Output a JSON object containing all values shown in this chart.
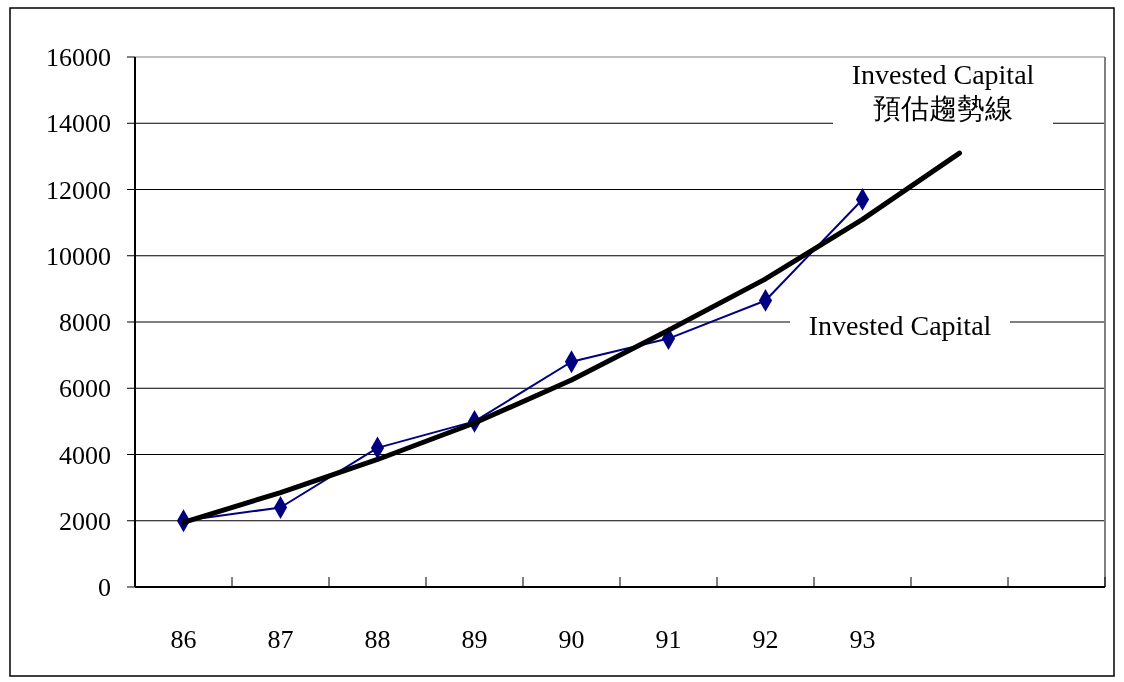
{
  "chart_data": {
    "type": "line",
    "categories": [
      "86",
      "87",
      "88",
      "89",
      "90",
      "91",
      "92",
      "93",
      null,
      null
    ],
    "series": [
      {
        "name": "Invested Capital",
        "color": "#000080",
        "marker": "diamond",
        "values": [
          2000,
          2400,
          4200,
          5000,
          6800,
          7500,
          8650,
          11700,
          null,
          null
        ]
      },
      {
        "name": "Invested Capital\n預估趨勢線",
        "color": "#000000",
        "marker": "none",
        "values": [
          1950,
          2850,
          3850,
          4950,
          6250,
          7750,
          9300,
          11100,
          13100,
          null
        ]
      }
    ],
    "ylim": [
      0,
      16000
    ],
    "yticks": [
      0,
      2000,
      4000,
      6000,
      8000,
      10000,
      12000,
      14000,
      16000
    ],
    "grid": "y"
  }
}
